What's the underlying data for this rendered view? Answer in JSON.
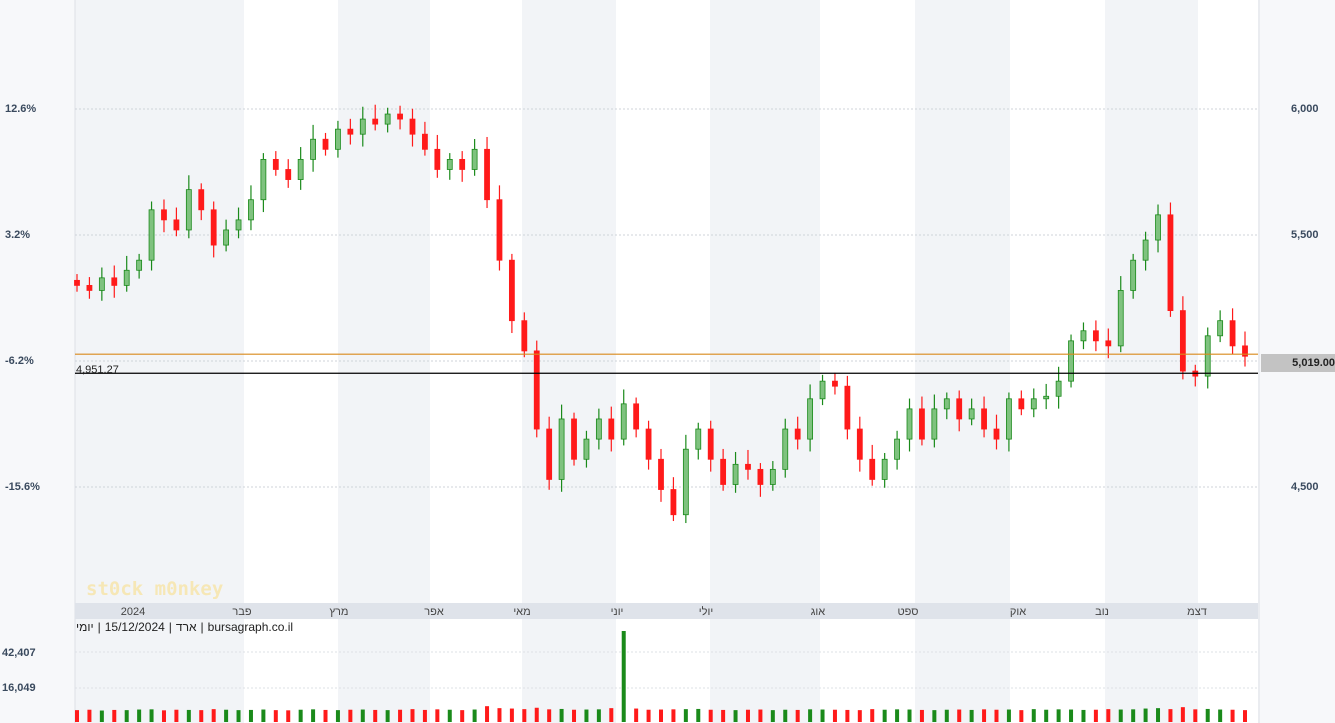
{
  "chart_data": {
    "type": "candlestick",
    "title": "",
    "price_axis": {
      "ticks": [
        4500,
        5000,
        5500,
        6000
      ],
      "labels": [
        "4,500",
        "",
        "5,500",
        "6,000"
      ],
      "range": [
        4050,
        6420
      ]
    },
    "percent_axis": {
      "labels": [
        "12.6%",
        "3.2%",
        "-6.2%",
        "-15.6%"
      ]
    },
    "x_labels": [
      "2024",
      "פבר",
      "מרץ",
      "אפר",
      "מאי",
      "יוני",
      "יולי",
      "אוג",
      "ספט",
      "אוק",
      "נוב",
      "דצמ"
    ],
    "closes": [
      5300,
      5280,
      5330,
      5300,
      5360,
      5400,
      5600,
      5560,
      5520,
      5680,
      5600,
      5460,
      5520,
      5560,
      5640,
      5800,
      5760,
      5720,
      5800,
      5880,
      5840,
      5920,
      5900,
      5960,
      5940,
      5980,
      5960,
      5900,
      5840,
      5760,
      5800,
      5760,
      5840,
      5640,
      5400,
      5160,
      5040,
      4730,
      4530,
      4770,
      4610,
      4690,
      4770,
      4690,
      4830,
      4730,
      4610,
      4490,
      4390,
      4650,
      4730,
      4610,
      4510,
      4590,
      4570,
      4510,
      4570,
      4730,
      4690,
      4850,
      4920,
      4900,
      4730,
      4610,
      4530,
      4610,
      4690,
      4810,
      4690,
      4810,
      4850,
      4770,
      4810,
      4730,
      4690,
      4850,
      4810,
      4850,
      4860,
      4920,
      5080,
      5120,
      5080,
      5060,
      5280,
      5400,
      5480,
      5580,
      5200,
      4960,
      4940,
      5100,
      5160,
      5060,
      5019
    ],
    "volumes": [
      6000,
      6200,
      5800,
      6100,
      6000,
      6300,
      6400,
      5900,
      6200,
      6100,
      6000,
      6500,
      6200,
      6000,
      6100,
      6300,
      6000,
      5900,
      6200,
      6400,
      6100,
      6000,
      6200,
      6300,
      6100,
      6000,
      6200,
      6500,
      6100,
      6400,
      6200,
      6000,
      6300,
      8000,
      7000,
      6800,
      6500,
      7200,
      6400,
      6600,
      6200,
      6300,
      6400,
      7000,
      6100,
      6800,
      6200,
      6300,
      6400,
      6500,
      6600,
      6200,
      6100,
      6000,
      6200,
      6300,
      6000,
      6200,
      6100,
      6400,
      6300,
      6200,
      6100,
      6000,
      6500,
      6200,
      6400,
      6300,
      6100,
      6000,
      6200,
      6300,
      6100,
      6400,
      6200,
      6300,
      6000,
      6500,
      6200,
      6400,
      6300,
      6100,
      6200,
      6500,
      6300,
      6400,
      6800,
      7000,
      6500,
      7500,
      6400,
      6600,
      6300,
      6200,
      6000
    ],
    "volume_spike": {
      "label_index": 44,
      "value": 46000
    },
    "volume_axis": {
      "labels": [
        "42,407",
        "16,049"
      ],
      "values": [
        42407,
        16049
      ]
    },
    "last_price": "5,019.00",
    "last_price_value": 5019,
    "reference_line": {
      "label": "4,951.27",
      "value": 4951.27
    },
    "colors": {
      "up": "#1a8a1a",
      "down": "#ff1a1a",
      "last_line": "#d98a1c",
      "ref_line": "#000000",
      "band": "#f2f4f7"
    }
  },
  "info": {
    "segments": [
      "יומי",
      "|",
      "15/12/2024",
      "|",
      "ארד",
      "|",
      "bursagraph.co.il"
    ]
  },
  "logo": "st0ck m0nkey"
}
